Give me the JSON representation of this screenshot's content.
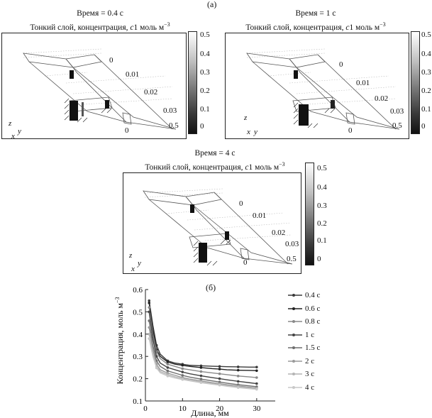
{
  "figure_labels": {
    "a": "(а)",
    "b": "(б)"
  },
  "panels": [
    {
      "time_label": "Время = 0.4 с",
      "subtitle": "Тонкий слой, концентрация, ",
      "subtitle_var": "c",
      "subtitle_unit": "1 моль м",
      "subtitle_exp": "−3",
      "colorbar_ticks": [
        "0.5",
        "0.4",
        "0.3",
        "0.2",
        "0.1",
        "0"
      ],
      "scale_labels": [
        "0",
        "0.01",
        "0.02",
        "0.03",
        "0.5",
        "0"
      ],
      "axes": {
        "z": "z",
        "x": "x",
        "y": "y"
      }
    },
    {
      "time_label": "Время = 1 с",
      "subtitle": "Тонкий слой, концентрация, ",
      "subtitle_var": "c",
      "subtitle_unit": "1 моль м",
      "subtitle_exp": "−3",
      "colorbar_ticks": [
        "0.5",
        "0.4",
        "0.3",
        "0.2",
        "0.1",
        "0"
      ],
      "scale_labels": [
        "0",
        "0.01",
        "0.02",
        "0.03",
        "0.5",
        "0"
      ],
      "axes": {
        "z": "z",
        "x": "x",
        "y": "y"
      }
    },
    {
      "time_label": "Время = 4 с",
      "subtitle": "Тонкий слой, концентрация, ",
      "subtitle_var": "c",
      "subtitle_unit": "1 моль м",
      "subtitle_exp": "−3",
      "colorbar_ticks": [
        "0.5",
        "0.4",
        "0.3",
        "0.2",
        "0.1",
        "0"
      ],
      "scale_labels": [
        "0",
        "0.01",
        "0.02",
        "0.03",
        "0.5",
        "0"
      ],
      "axes": {
        "z": "z",
        "x": "x",
        "y": "y"
      }
    }
  ],
  "chart_data": {
    "type": "line",
    "xlabel": "Длина, мм",
    "ylabel": "Концентрация, моль м",
    "ylabel_exp": "−3",
    "xlim": [
      0,
      35
    ],
    "ylim": [
      0.1,
      0.6
    ],
    "xticks": [
      0,
      10,
      20,
      30
    ],
    "yticks": [
      0.1,
      0.2,
      0.3,
      0.4,
      0.5,
      0.6
    ],
    "x": [
      1,
      2,
      3,
      4,
      6,
      8,
      10,
      12,
      15,
      18,
      20,
      22,
      25,
      28,
      30
    ],
    "series": [
      {
        "name": "0.4 с",
        "color": "#3a3a3a",
        "values": [
          0.55,
          0.44,
          0.35,
          0.31,
          0.28,
          0.27,
          0.265,
          0.26,
          0.258,
          0.256,
          0.255,
          0.254,
          0.253,
          0.252,
          0.252
        ]
      },
      {
        "name": "0.6 с",
        "color": "#222222",
        "values": [
          0.54,
          0.42,
          0.33,
          0.3,
          0.275,
          0.265,
          0.26,
          0.255,
          0.25,
          0.245,
          0.243,
          0.24,
          0.238,
          0.237,
          0.236
        ]
      },
      {
        "name": "0.8 с",
        "color": "#8a8a8a",
        "values": [
          0.52,
          0.4,
          0.32,
          0.29,
          0.265,
          0.255,
          0.245,
          0.24,
          0.232,
          0.226,
          0.222,
          0.218,
          0.212,
          0.208,
          0.205
        ]
      },
      {
        "name": "1 с",
        "color": "#444444",
        "values": [
          0.5,
          0.38,
          0.3,
          0.27,
          0.25,
          0.24,
          0.23,
          0.222,
          0.213,
          0.205,
          0.2,
          0.195,
          0.188,
          0.182,
          0.178
        ]
      },
      {
        "name": "1.5 с",
        "color": "#6e6e6e",
        "values": [
          0.46,
          0.35,
          0.28,
          0.255,
          0.235,
          0.225,
          0.215,
          0.207,
          0.198,
          0.19,
          0.185,
          0.18,
          0.173,
          0.168,
          0.164
        ]
      },
      {
        "name": "2 с",
        "color": "#9a9a9a",
        "values": [
          0.43,
          0.33,
          0.265,
          0.24,
          0.225,
          0.215,
          0.205,
          0.198,
          0.19,
          0.182,
          0.178,
          0.173,
          0.167,
          0.162,
          0.158
        ]
      },
      {
        "name": "3 с",
        "color": "#b4b4b4",
        "values": [
          0.4,
          0.31,
          0.255,
          0.232,
          0.218,
          0.208,
          0.2,
          0.193,
          0.185,
          0.178,
          0.174,
          0.169,
          0.163,
          0.158,
          0.155
        ]
      },
      {
        "name": "4 с",
        "color": "#c8c8c8",
        "values": [
          0.38,
          0.3,
          0.248,
          0.226,
          0.212,
          0.203,
          0.196,
          0.19,
          0.182,
          0.175,
          0.171,
          0.166,
          0.16,
          0.155,
          0.152
        ]
      }
    ]
  }
}
